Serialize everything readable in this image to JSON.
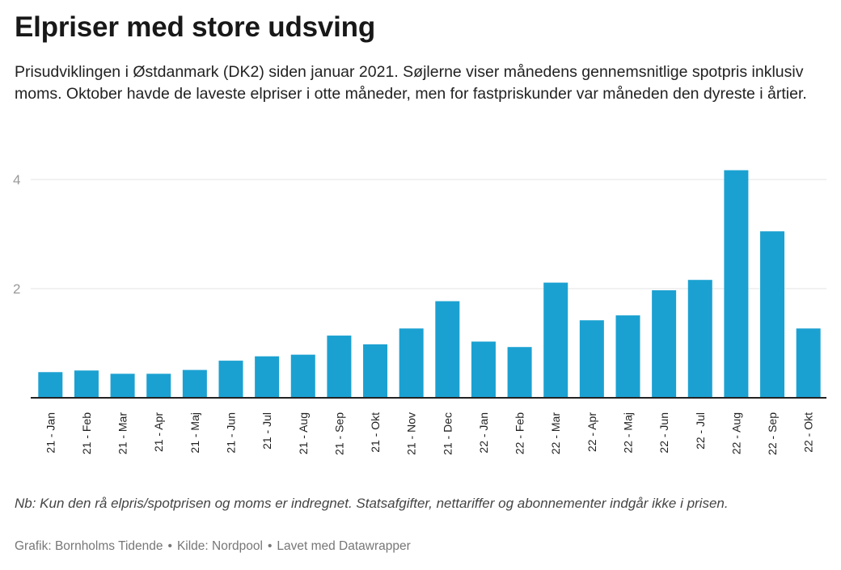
{
  "title": "Elpriser med store udsving",
  "subtitle": "Prisudviklingen i Østdanmark (DK2) siden januar 2021. Søjlerne viser månedens gennemsnitlige spotpris inklusiv moms. Oktober havde de laveste elpriser i otte måneder, men for fastpriskunder var måneden den dyreste i årtier.",
  "note": "Nb: Kun den rå elpris/spotprisen og moms er indregnet. Statsafgifter, nettariffer og abonnementer indgår ikke i prisen.",
  "footer": {
    "credit": "Grafik: Bornholms Tidende",
    "source": "Kilde: Nordpool",
    "tool": "Lavet med Datawrapper",
    "separator": "•"
  },
  "colors": {
    "bar": "#1ba1d1",
    "grid": "#e3e3e3",
    "axis": "#222222",
    "tick": "#999999"
  },
  "chart_data": {
    "type": "bar",
    "categories": [
      "21 - Jan",
      "21 - Feb",
      "21 - Mar",
      "21 - Apr",
      "21 - Maj",
      "21 - Jun",
      "21 - Jul",
      "21 - Aug",
      "21 - Sep",
      "21 - Okt",
      "21 - Nov",
      "21 - Dec",
      "22 - Jan",
      "22 - Feb",
      "22 - Mar",
      "22 - Apr",
      "22 - Maj",
      "22 - Jun",
      "22 - Jul",
      "22 - Aug",
      "22 - Sep",
      "22 - Okt"
    ],
    "values": [
      0.47,
      0.5,
      0.44,
      0.44,
      0.51,
      0.68,
      0.76,
      0.79,
      1.14,
      0.98,
      1.27,
      1.77,
      1.03,
      0.93,
      2.11,
      1.42,
      1.51,
      1.97,
      2.16,
      4.17,
      3.05,
      1.27
    ],
    "yticks": [
      2,
      4
    ],
    "ylim": [
      0,
      4.2
    ],
    "grid": true,
    "xlabel": "",
    "ylabel": ""
  }
}
